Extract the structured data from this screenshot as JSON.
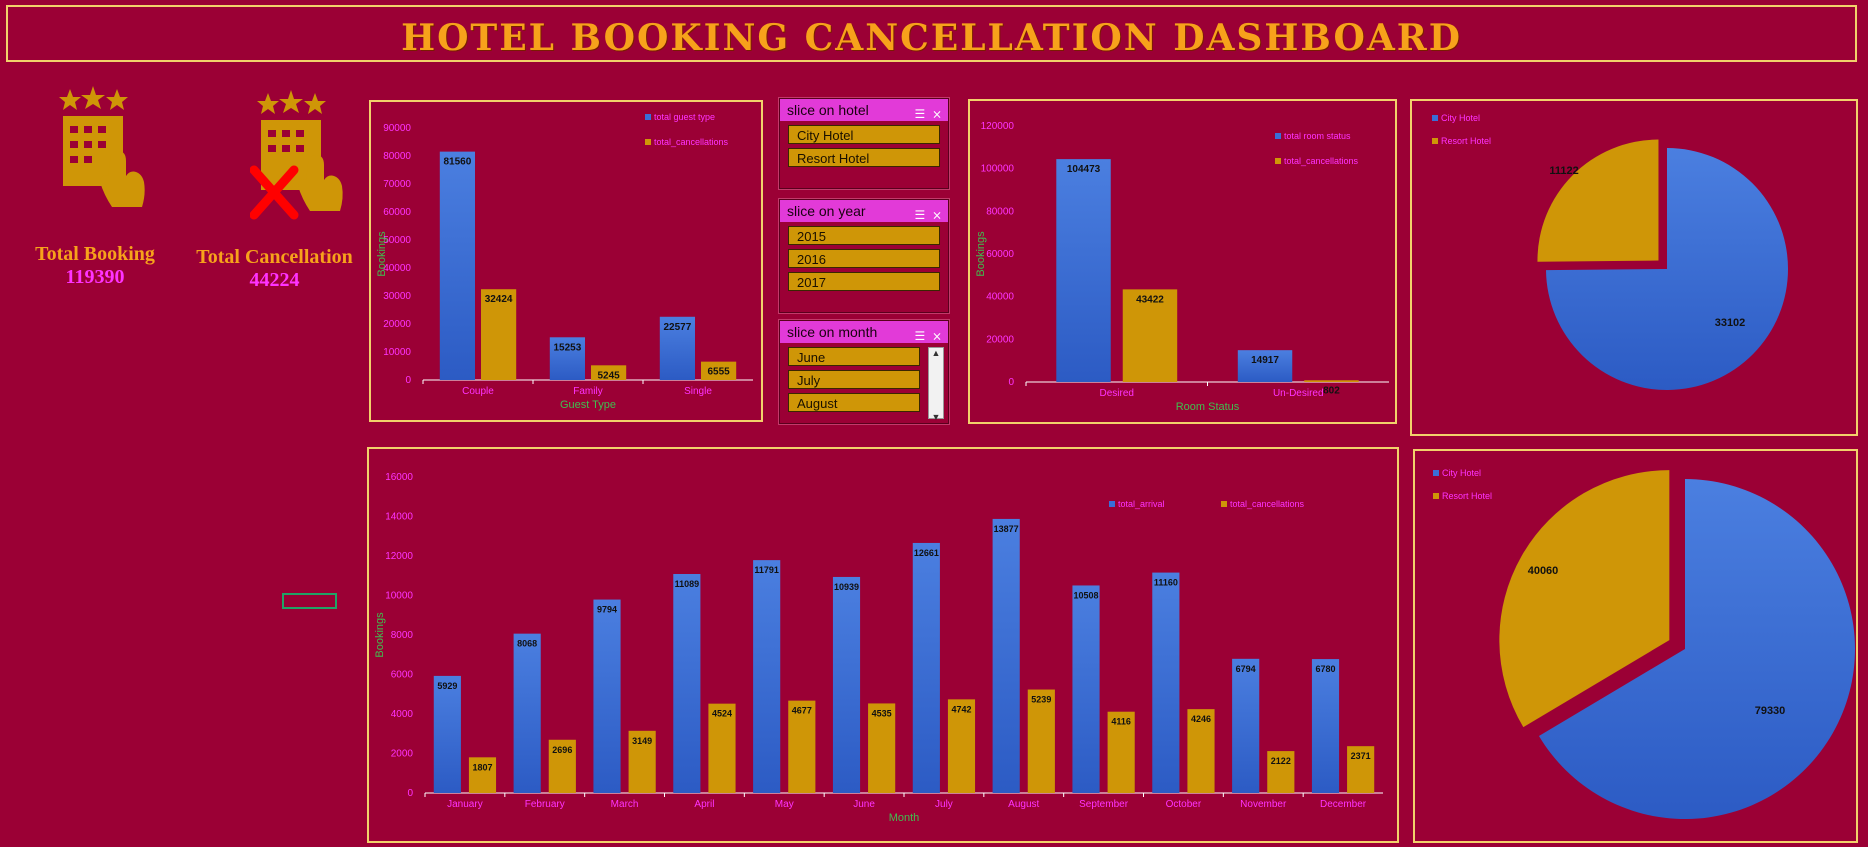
{
  "title": "HOTEL BOOKING CANCELLATION DASHBOARD",
  "kpis": {
    "booking": {
      "label": "Total Booking",
      "value": "119390"
    },
    "cancellation": {
      "label": "Total Cancellation",
      "value": "44224"
    }
  },
  "slicers": {
    "hotel": {
      "title": "slice on hotel",
      "items": [
        "City Hotel",
        "Resort Hotel"
      ]
    },
    "year": {
      "title": "slice on year",
      "items": [
        "2015",
        "2016",
        "2017"
      ]
    },
    "month": {
      "title": "slice on month",
      "items": [
        "June",
        "July",
        "August"
      ]
    }
  },
  "colors": {
    "blue": "#3a6fd8",
    "gold": "#cf9607",
    "pink": "#ff33ff",
    "green": "#3fbf4f",
    "bg": "#9b0035",
    "border": "#f2d16b"
  },
  "chart_data": [
    {
      "id": "guest",
      "type": "bar",
      "categories": [
        "Couple",
        "Family",
        "Single"
      ],
      "series": [
        {
          "name": "total guest type",
          "values": [
            81560,
            15253,
            22577
          ]
        },
        {
          "name": "total_cancellations",
          "values": [
            32424,
            5245,
            6555
          ]
        }
      ],
      "xlabel": "Guest Type",
      "ylabel": "Bookings",
      "ylim": [
        0,
        90000
      ],
      "yticks": [
        "0",
        "10000",
        "20000",
        "30000",
        "40000",
        "50000",
        "60000",
        "70000",
        "80000",
        "90000"
      ],
      "legend": "top-right"
    },
    {
      "id": "room",
      "type": "bar",
      "categories": [
        "Desired",
        "Un-Desired"
      ],
      "series": [
        {
          "name": "total room status",
          "values": [
            104473,
            14917
          ]
        },
        {
          "name": "total_cancellations",
          "values": [
            43422,
            802
          ]
        }
      ],
      "xlabel": "Room Status",
      "ylabel": "Bookings",
      "ylim": [
        0,
        120000
      ],
      "yticks": [
        "0",
        "20000",
        "40000",
        "60000",
        "80000",
        "100000",
        "120000"
      ],
      "legend": "top-right"
    },
    {
      "id": "pie1",
      "type": "pie",
      "series": [
        {
          "name": "City Hotel",
          "values": [
            33102
          ]
        },
        {
          "name": "Resort Hotel",
          "values": [
            11122
          ]
        }
      ],
      "legend": "top-left"
    },
    {
      "id": "month",
      "type": "bar",
      "categories": [
        "January",
        "February",
        "March",
        "April",
        "May",
        "June",
        "July",
        "August",
        "September",
        "October",
        "November",
        "December"
      ],
      "series": [
        {
          "name": "total_arrival",
          "values": [
            5929,
            8068,
            9794,
            11089,
            11791,
            10939,
            12661,
            13877,
            10508,
            11160,
            6794,
            6780
          ]
        },
        {
          "name": "total_cancellations",
          "values": [
            1807,
            2696,
            3149,
            4524,
            4677,
            4535,
            4742,
            5239,
            4116,
            4246,
            2122,
            2371
          ]
        }
      ],
      "xlabel": "Month",
      "ylabel": "Bookings",
      "ylim": [
        0,
        16000
      ],
      "yticks": [
        "0",
        "2000",
        "4000",
        "6000",
        "8000",
        "10000",
        "12000",
        "14000",
        "16000"
      ],
      "legend": "top-right"
    },
    {
      "id": "pie2",
      "type": "pie",
      "series": [
        {
          "name": "City Hotel",
          "values": [
            79330
          ]
        },
        {
          "name": "Resort Hotel",
          "values": [
            40060
          ]
        }
      ],
      "legend": "top-left"
    }
  ]
}
